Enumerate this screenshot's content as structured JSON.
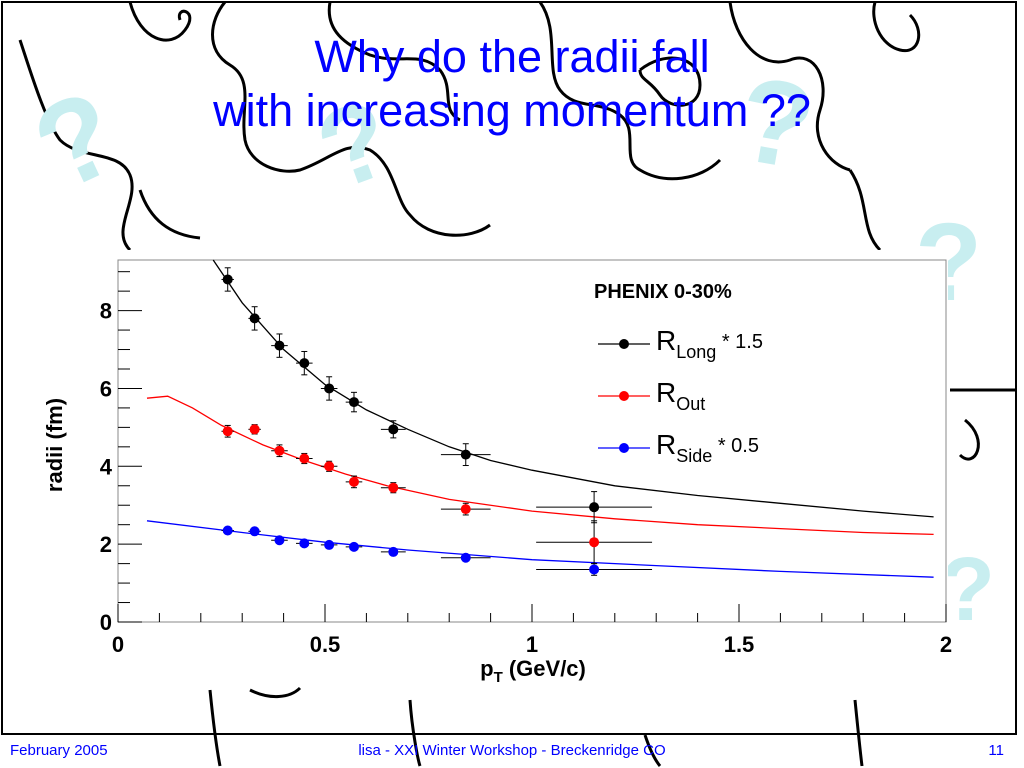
{
  "slide": {
    "title_line1": "Why do the radii fall",
    "title_line2": "with increasing momentum ??",
    "footer_left": "February 2005",
    "footer_center": "lisa - XXI Winter Workshop - Breckenridge CO",
    "footer_right": "11",
    "title_color": "#0000ff",
    "decoration_color": "#c8eef0"
  },
  "chart_data": {
    "type": "scatter",
    "title": "PHENIX 0-30%",
    "xlabel": "p_T (GeV/c)",
    "ylabel": "radii (fm)",
    "xlim": [
      0,
      2
    ],
    "ylim": [
      0,
      9.3
    ],
    "xticks": [
      "0",
      "0.5",
      "1",
      "1.5",
      "2"
    ],
    "yticks": [
      "0",
      "2",
      "4",
      "6",
      "8"
    ],
    "legend_position": "top-right",
    "grid": false,
    "series": [
      {
        "name": "R_Long * 1.5",
        "legend_main": "R",
        "legend_sub": "Long",
        "legend_suffix": " * 1.5",
        "color": "#000000",
        "points": [
          {
            "x": 0.265,
            "y": 8.8,
            "xerr": 0.015,
            "yerr": 0.3
          },
          {
            "x": 0.33,
            "y": 7.8,
            "xerr": 0.015,
            "yerr": 0.3
          },
          {
            "x": 0.39,
            "y": 7.1,
            "xerr": 0.02,
            "yerr": 0.3
          },
          {
            "x": 0.45,
            "y": 6.65,
            "xerr": 0.02,
            "yerr": 0.3
          },
          {
            "x": 0.51,
            "y": 6.0,
            "xerr": 0.02,
            "yerr": 0.3
          },
          {
            "x": 0.57,
            "y": 5.65,
            "xerr": 0.02,
            "yerr": 0.25
          },
          {
            "x": 0.665,
            "y": 4.95,
            "xerr": 0.03,
            "yerr": 0.22
          },
          {
            "x": 0.84,
            "y": 4.3,
            "xerr": 0.06,
            "yerr": 0.28
          },
          {
            "x": 1.15,
            "y": 2.95,
            "xerr": 0.14,
            "yerr": 0.4
          }
        ],
        "fit": [
          {
            "x": 0.23,
            "y": 9.3
          },
          {
            "x": 0.3,
            "y": 8.2
          },
          {
            "x": 0.4,
            "y": 7.0
          },
          {
            "x": 0.5,
            "y": 6.1
          },
          {
            "x": 0.6,
            "y": 5.45
          },
          {
            "x": 0.7,
            "y": 4.95
          },
          {
            "x": 0.8,
            "y": 4.5
          },
          {
            "x": 0.9,
            "y": 4.15
          },
          {
            "x": 1.0,
            "y": 3.9
          },
          {
            "x": 1.2,
            "y": 3.5
          },
          {
            "x": 1.4,
            "y": 3.25
          },
          {
            "x": 1.6,
            "y": 3.05
          },
          {
            "x": 1.8,
            "y": 2.85
          },
          {
            "x": 1.97,
            "y": 2.7
          }
        ]
      },
      {
        "name": "R_Out",
        "legend_main": "R",
        "legend_sub": "Out",
        "legend_suffix": "",
        "color": "#ff0000",
        "points": [
          {
            "x": 0.265,
            "y": 4.9,
            "xerr": 0.015,
            "yerr": 0.15
          },
          {
            "x": 0.33,
            "y": 4.95,
            "xerr": 0.015,
            "yerr": 0.12
          },
          {
            "x": 0.39,
            "y": 4.4,
            "xerr": 0.02,
            "yerr": 0.15
          },
          {
            "x": 0.45,
            "y": 4.2,
            "xerr": 0.02,
            "yerr": 0.13
          },
          {
            "x": 0.51,
            "y": 4.0,
            "xerr": 0.02,
            "yerr": 0.13
          },
          {
            "x": 0.57,
            "y": 3.6,
            "xerr": 0.02,
            "yerr": 0.15
          },
          {
            "x": 0.665,
            "y": 3.45,
            "xerr": 0.03,
            "yerr": 0.13
          },
          {
            "x": 0.84,
            "y": 2.9,
            "xerr": 0.06,
            "yerr": 0.15
          },
          {
            "x": 1.15,
            "y": 2.05,
            "xerr": 0.14,
            "yerr": 0.55
          }
        ],
        "fit": [
          {
            "x": 0.07,
            "y": 5.75
          },
          {
            "x": 0.12,
            "y": 5.8
          },
          {
            "x": 0.18,
            "y": 5.5
          },
          {
            "x": 0.25,
            "y": 5.05
          },
          {
            "x": 0.35,
            "y": 4.55
          },
          {
            "x": 0.45,
            "y": 4.15
          },
          {
            "x": 0.55,
            "y": 3.8
          },
          {
            "x": 0.65,
            "y": 3.5
          },
          {
            "x": 0.8,
            "y": 3.15
          },
          {
            "x": 1.0,
            "y": 2.85
          },
          {
            "x": 1.2,
            "y": 2.65
          },
          {
            "x": 1.4,
            "y": 2.5
          },
          {
            "x": 1.6,
            "y": 2.4
          },
          {
            "x": 1.8,
            "y": 2.3
          },
          {
            "x": 1.97,
            "y": 2.25
          }
        ]
      },
      {
        "name": "R_Side * 0.5",
        "legend_main": "R",
        "legend_sub": "Side",
        "legend_suffix": " * 0.5",
        "color": "#0000ff",
        "points": [
          {
            "x": 0.265,
            "y": 2.35,
            "xerr": 0.015,
            "yerr": 0.08
          },
          {
            "x": 0.33,
            "y": 2.33,
            "xerr": 0.015,
            "yerr": 0.08
          },
          {
            "x": 0.39,
            "y": 2.1,
            "xerr": 0.02,
            "yerr": 0.07
          },
          {
            "x": 0.45,
            "y": 2.02,
            "xerr": 0.02,
            "yerr": 0.07
          },
          {
            "x": 0.51,
            "y": 1.98,
            "xerr": 0.02,
            "yerr": 0.07
          },
          {
            "x": 0.57,
            "y": 1.93,
            "xerr": 0.02,
            "yerr": 0.07
          },
          {
            "x": 0.665,
            "y": 1.8,
            "xerr": 0.03,
            "yerr": 0.06
          },
          {
            "x": 0.84,
            "y": 1.65,
            "xerr": 0.06,
            "yerr": 0.07
          },
          {
            "x": 1.15,
            "y": 1.35,
            "xerr": 0.14,
            "yerr": 0.15
          }
        ],
        "fit": [
          {
            "x": 0.07,
            "y": 2.6
          },
          {
            "x": 0.3,
            "y": 2.3
          },
          {
            "x": 0.5,
            "y": 2.05
          },
          {
            "x": 0.7,
            "y": 1.85
          },
          {
            "x": 1.0,
            "y": 1.6
          },
          {
            "x": 1.3,
            "y": 1.45
          },
          {
            "x": 1.6,
            "y": 1.3
          },
          {
            "x": 1.97,
            "y": 1.15
          }
        ]
      }
    ]
  }
}
